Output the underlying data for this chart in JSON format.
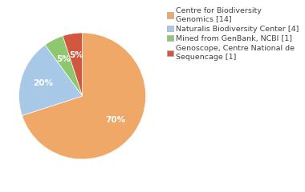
{
  "labels": [
    "Centre for Biodiversity\nGenomics [14]",
    "Naturalis Biodiversity Center [4]",
    "Mined from GenBank, NCBI [1]",
    "Genoscope, Centre National de\nSequencage [1]"
  ],
  "values": [
    70,
    20,
    5,
    5
  ],
  "colors": [
    "#f0a868",
    "#a8c8e8",
    "#8dc870",
    "#d05840"
  ],
  "startangle": 90,
  "background_color": "#ffffff",
  "text_color": "#404040",
  "legend_fontsize": 6.8,
  "pct_fontsize": 7.5
}
